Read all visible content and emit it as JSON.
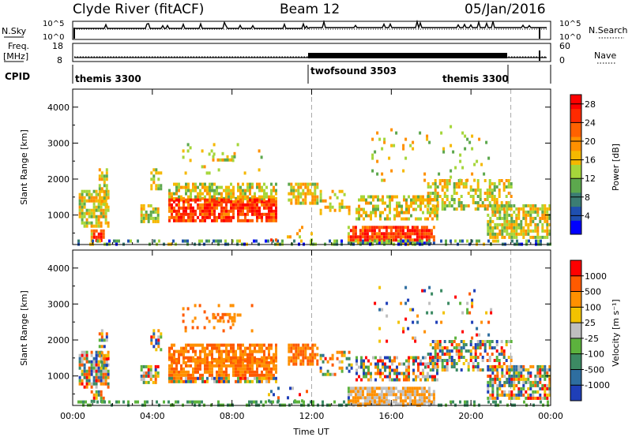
{
  "header": {
    "station": "Clyde River (fitACF)",
    "beam": "Beam 12",
    "date": "05/Jan/2016"
  },
  "strip": {
    "nsky_label": "N.Sky",
    "nsky_ticks": [
      "10^5",
      "10^0"
    ],
    "nsearch_label": "N.Search",
    "nsearch_ticks": [
      "10^5",
      "10^0"
    ],
    "freq_label_1": "Freq.",
    "freq_label_2": "[MHz]",
    "freq_ticks": [
      "18",
      "8"
    ],
    "nave_label": "Nave",
    "nave_ticks": [
      "60",
      "0"
    ],
    "cpid_label": "CPID",
    "cpid_segments": [
      "themis 3300",
      "twofsound 3503",
      "themis 3300"
    ]
  },
  "chart_data": [
    {
      "type": "heatmap",
      "ylabel": "Slant Range [km]",
      "xlabel": "",
      "x_ticks": [
        "00:00",
        "04:00",
        "08:00",
        "12:00",
        "16:00",
        "20:00",
        "00:00"
      ],
      "x_range_hours": [
        0,
        24
      ],
      "ylim": [
        180,
        4500
      ],
      "y_ticks": [
        1000,
        2000,
        3000,
        4000
      ],
      "colorbar": {
        "label": "Power [dB]",
        "ticks": [
          "4",
          "8",
          "12",
          "16",
          "20",
          "24",
          "28"
        ],
        "range": [
          0,
          30
        ],
        "colors": [
          "#0000ff",
          "#1f4fb0",
          "#3b7d73",
          "#5ca84d",
          "#a5d63a",
          "#f5b800",
          "#ff9000",
          "#ff6100",
          "#ff2a00",
          "#ff0000"
        ]
      },
      "mode_change_hours": [
        12,
        22
      ]
    },
    {
      "type": "heatmap",
      "ylabel": "Slant Range [km]",
      "xlabel": "Time UT",
      "x_ticks": [
        "00:00",
        "04:00",
        "08:00",
        "12:00",
        "16:00",
        "20:00",
        "00:00"
      ],
      "x_range_hours": [
        0,
        24
      ],
      "ylim": [
        180,
        4500
      ],
      "y_ticks": [
        1000,
        2000,
        3000,
        4000
      ],
      "colorbar": {
        "label": "Velocity [m s⁻¹]",
        "ticks": [
          "1000",
          "500",
          "100",
          "25",
          "-25",
          "-100",
          "-500",
          "-1000"
        ],
        "colors": [
          "#1f3fb8",
          "#2e6ea0",
          "#3c8a63",
          "#5cb23d",
          "#bfbfbf",
          "#f2c200",
          "#ff9000",
          "#ff5a00",
          "#ff0000"
        ]
      },
      "mode_change_hours": [
        12,
        22
      ]
    }
  ]
}
